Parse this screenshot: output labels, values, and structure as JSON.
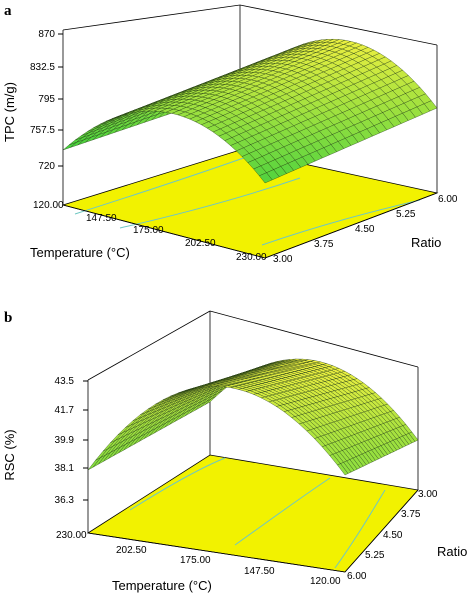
{
  "panels": [
    {
      "label": "a",
      "zlabel": "TPC (m/g)",
      "xlabel": "Temperature (°C)",
      "ylabel": "Ratio",
      "zticks": [
        "720",
        "757.5",
        "795",
        "832.5",
        "870"
      ],
      "xticks": [
        "120.00",
        "147.50",
        "175.00",
        "202.50",
        "230.00"
      ],
      "yticks": [
        "3.00",
        "3.75",
        "4.50",
        "5.25",
        "6.00"
      ]
    },
    {
      "label": "b",
      "zlabel": "RSC (%)",
      "xlabel": "Temperature (°C)",
      "ylabel": "Ratio",
      "zticks": [
        "36.3",
        "38.1",
        "39.9",
        "41.7",
        "43.5"
      ],
      "xticks": [
        "230.00",
        "202.50",
        "175.00",
        "147.50",
        "120.00"
      ],
      "yticks": [
        "3.00",
        "3.75",
        "4.50",
        "5.25",
        "6.00"
      ]
    }
  ],
  "colors": {
    "floor": "#f2f200",
    "surface_low": "#3ecf3e",
    "surface_high": "#f0f040",
    "contour": "#6fc7c2"
  },
  "chart_data": [
    {
      "type": "surface",
      "label": "a",
      "xlabel": "Temperature (°C)",
      "ylabel": "Ratio",
      "zlabel": "TPC (m/g)",
      "x_range": [
        120,
        230
      ],
      "y_range": [
        3,
        6
      ],
      "z_range": [
        720,
        870
      ],
      "grid": [
        {
          "x": 120,
          "y": 3,
          "z": 723
        },
        {
          "x": 120,
          "y": 6,
          "z": 795
        },
        {
          "x": 175,
          "y": 3,
          "z": 795
        },
        {
          "x": 175,
          "y": 6,
          "z": 866
        },
        {
          "x": 230,
          "y": 3,
          "z": 735
        },
        {
          "x": 230,
          "y": 6,
          "z": 800
        }
      ]
    },
    {
      "type": "surface",
      "label": "b",
      "xlabel": "Temperature (°C)",
      "ylabel": "Ratio",
      "zlabel": "RSC (%)",
      "x_range": [
        120,
        230
      ],
      "y_range": [
        3,
        6
      ],
      "z_range": [
        36.3,
        43.5
      ],
      "grid": [
        {
          "x": 230,
          "y": 6,
          "z": 39.0
        },
        {
          "x": 230,
          "y": 3,
          "z": 40.0
        },
        {
          "x": 175,
          "y": 6,
          "z": 42.6
        },
        {
          "x": 175,
          "y": 3,
          "z": 43.5
        },
        {
          "x": 120,
          "y": 6,
          "z": 39.4
        },
        {
          "x": 120,
          "y": 3,
          "z": 40.1
        }
      ]
    }
  ]
}
